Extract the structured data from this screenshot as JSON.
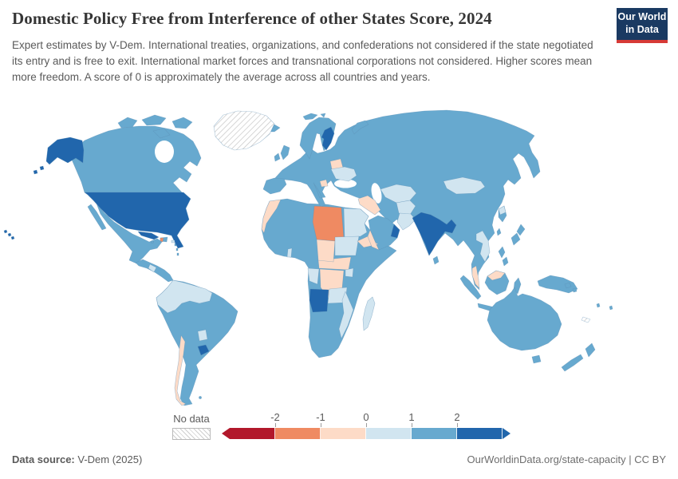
{
  "header": {
    "title": "Domestic Policy Free from Interference of other States Score, 2024",
    "subtitle": "Expert estimates by V-Dem. International treaties, organizations, and confederations not considered if the state negotiated its entry and is free to exit. International market forces and transnational corporations not considered. Higher scores mean more freedom. A score of 0 is approximately the average across all countries and years.",
    "logo": {
      "line1": "Our World",
      "line2": "in Data",
      "bg_color": "#1a3a62",
      "accent_color": "#d73a36"
    }
  },
  "legend": {
    "no_data_label": "No data",
    "tick_labels": [
      "-2",
      "-1",
      "0",
      "1",
      "2"
    ],
    "bins": [
      {
        "id": "lt-2",
        "range": "< -2",
        "color": "#b2182b"
      },
      {
        "id": "-2to-1",
        "range": "-2 to -1",
        "color": "#ef8a62"
      },
      {
        "id": "-1to0",
        "range": "-1 to 0",
        "color": "#fddbc7"
      },
      {
        "id": "0to1",
        "range": "0 to 1",
        "color": "#d1e5f0"
      },
      {
        "id": "1to2",
        "range": "1 to 2",
        "color": "#67a9cf"
      },
      {
        "id": "gt2",
        "range": "> 2",
        "color": "#2166ac"
      },
      {
        "id": "no-data",
        "range": "No data",
        "color": "hatch"
      }
    ]
  },
  "footer": {
    "datasource_label": "Data source:",
    "datasource_value": " V-Dem (2025)",
    "right_text": "OurWorldinData.org/state-capacity | CC BY"
  },
  "chart_data": {
    "type": "choropleth",
    "title": "Domestic Policy Free from Interference of other States Score, 2024",
    "year": 2024,
    "source": "V-Dem (2025)",
    "scale": {
      "bin_edges": [
        -2,
        -1,
        0,
        1,
        2
      ],
      "note": "A score of 0 is approximately the average across all countries and years; higher scores mean more freedom.",
      "legend_position": "bottom"
    },
    "countries": [
      {
        "name": "United States",
        "bin": "gt2"
      },
      {
        "name": "Finland",
        "bin": "gt2"
      },
      {
        "name": "India",
        "bin": "gt2"
      },
      {
        "name": "Uruguay",
        "bin": "gt2"
      },
      {
        "name": "Angola",
        "bin": "gt2"
      },
      {
        "name": "Oman",
        "bin": "gt2"
      },
      {
        "name": "Cuba",
        "bin": "gt2"
      },
      {
        "name": "Canada",
        "bin": "1to2"
      },
      {
        "name": "Mexico",
        "bin": "1to2"
      },
      {
        "name": "Brazil",
        "bin": "1to2"
      },
      {
        "name": "Argentina",
        "bin": "1to2"
      },
      {
        "name": "Peru",
        "bin": "1to2"
      },
      {
        "name": "Bolivia",
        "bin": "1to2"
      },
      {
        "name": "Guyana",
        "bin": "1to2"
      },
      {
        "name": "Dominican Republic",
        "bin": "1to2"
      },
      {
        "name": "Jamaica",
        "bin": "1to2"
      },
      {
        "name": "Iceland",
        "bin": "1to2"
      },
      {
        "name": "United Kingdom",
        "bin": "1to2"
      },
      {
        "name": "Ireland",
        "bin": "1to2"
      },
      {
        "name": "Spain",
        "bin": "1to2"
      },
      {
        "name": "Portugal",
        "bin": "1to2"
      },
      {
        "name": "France",
        "bin": "1to2"
      },
      {
        "name": "Germany",
        "bin": "1to2"
      },
      {
        "name": "Italy",
        "bin": "1to2"
      },
      {
        "name": "Norway",
        "bin": "1to2"
      },
      {
        "name": "Sweden",
        "bin": "1to2"
      },
      {
        "name": "Denmark",
        "bin": "1to2"
      },
      {
        "name": "Poland",
        "bin": "1to2"
      },
      {
        "name": "Romania",
        "bin": "1to2"
      },
      {
        "name": "Greece",
        "bin": "1to2"
      },
      {
        "name": "Turkey",
        "bin": "1to2"
      },
      {
        "name": "Russia",
        "bin": "1to2"
      },
      {
        "name": "Kazakhstan",
        "bin": "1to2"
      },
      {
        "name": "China",
        "bin": "1to2"
      },
      {
        "name": "Japan",
        "bin": "1to2"
      },
      {
        "name": "South Korea",
        "bin": "1to2"
      },
      {
        "name": "Taiwan",
        "bin": "1to2"
      },
      {
        "name": "Iran",
        "bin": "1to2"
      },
      {
        "name": "Saudi Arabia",
        "bin": "1to2"
      },
      {
        "name": "Algeria",
        "bin": "1to2"
      },
      {
        "name": "Tunisia",
        "bin": "1to2"
      },
      {
        "name": "Mali",
        "bin": "1to2"
      },
      {
        "name": "Niger",
        "bin": "1to2"
      },
      {
        "name": "Nigeria",
        "bin": "1to2"
      },
      {
        "name": "Ethiopia",
        "bin": "1to2"
      },
      {
        "name": "Kenya",
        "bin": "1to2"
      },
      {
        "name": "Tanzania",
        "bin": "1to2"
      },
      {
        "name": "Somalia",
        "bin": "1to2"
      },
      {
        "name": "Namibia",
        "bin": "1to2"
      },
      {
        "name": "Botswana",
        "bin": "1to2"
      },
      {
        "name": "Zimbabwe",
        "bin": "1to2"
      },
      {
        "name": "South Africa",
        "bin": "1to2"
      },
      {
        "name": "Myanmar",
        "bin": "1to2"
      },
      {
        "name": "Thailand",
        "bin": "1to2"
      },
      {
        "name": "Philippines",
        "bin": "1to2"
      },
      {
        "name": "Indonesia",
        "bin": "1to2"
      },
      {
        "name": "Papua New Guinea",
        "bin": "1to2"
      },
      {
        "name": "Australia",
        "bin": "1to2"
      },
      {
        "name": "New Zealand",
        "bin": "1to2"
      },
      {
        "name": "Sri Lanka",
        "bin": "1to2"
      },
      {
        "name": "Nepal",
        "bin": "1to2"
      },
      {
        "name": "Colombia",
        "bin": "0to1"
      },
      {
        "name": "Venezuela",
        "bin": "0to1"
      },
      {
        "name": "Ecuador",
        "bin": "0to1"
      },
      {
        "name": "Paraguay",
        "bin": "0to1"
      },
      {
        "name": "Nicaragua",
        "bin": "0to1"
      },
      {
        "name": "Puerto Rico",
        "bin": "0to1"
      },
      {
        "name": "Ukraine",
        "bin": "0to1"
      },
      {
        "name": "Mongolia",
        "bin": "0to1"
      },
      {
        "name": "Egypt",
        "bin": "0to1"
      },
      {
        "name": "Sudan",
        "bin": "0to1"
      },
      {
        "name": "Uganda",
        "bin": "0to1"
      },
      {
        "name": "Zambia",
        "bin": "0to1"
      },
      {
        "name": "Mozambique",
        "bin": "0to1"
      },
      {
        "name": "Madagascar",
        "bin": "0to1"
      },
      {
        "name": "Gabon",
        "bin": "0to1"
      },
      {
        "name": "Republic of the Congo",
        "bin": "0to1"
      },
      {
        "name": "Benin",
        "bin": "0to1"
      },
      {
        "name": "Pakistan",
        "bin": "0to1"
      },
      {
        "name": "Afghanistan",
        "bin": "0to1"
      },
      {
        "name": "Uzbekistan",
        "bin": "0to1"
      },
      {
        "name": "Turkmenistan",
        "bin": "0to1"
      },
      {
        "name": "Kyrgyzstan",
        "bin": "0to1"
      },
      {
        "name": "Tajikistan",
        "bin": "0to1"
      },
      {
        "name": "Vietnam",
        "bin": "0to1"
      },
      {
        "name": "Laos",
        "bin": "0to1"
      },
      {
        "name": "Cambodia",
        "bin": "0to1"
      },
      {
        "name": "North Korea",
        "bin": "0to1"
      },
      {
        "name": "Chile",
        "bin": "-1to0"
      },
      {
        "name": "Belarus",
        "bin": "-1to0"
      },
      {
        "name": "Bosnia and Herzegovina",
        "bin": "-1to0"
      },
      {
        "name": "Morocco",
        "bin": "-1to0"
      },
      {
        "name": "Western Sahara",
        "bin": "-1to0"
      },
      {
        "name": "Syria",
        "bin": "-1to0"
      },
      {
        "name": "Iraq",
        "bin": "-1to0"
      },
      {
        "name": "Jordan",
        "bin": "-1to0"
      },
      {
        "name": "Yemen",
        "bin": "-1to0"
      },
      {
        "name": "Chad",
        "bin": "-1to0"
      },
      {
        "name": "Central African Republic",
        "bin": "-1to0"
      },
      {
        "name": "South Sudan",
        "bin": "-1to0"
      },
      {
        "name": "Eritrea",
        "bin": "-1to0"
      },
      {
        "name": "DR Congo",
        "bin": "-1to0"
      },
      {
        "name": "Malaysia",
        "bin": "-1to0"
      },
      {
        "name": "Libya",
        "bin": "-2to-1"
      },
      {
        "name": "Haiti",
        "bin": "-2to-1"
      },
      {
        "name": "Greenland",
        "bin": "no-data"
      },
      {
        "name": "New Caledonia",
        "bin": "no-data"
      }
    ]
  }
}
